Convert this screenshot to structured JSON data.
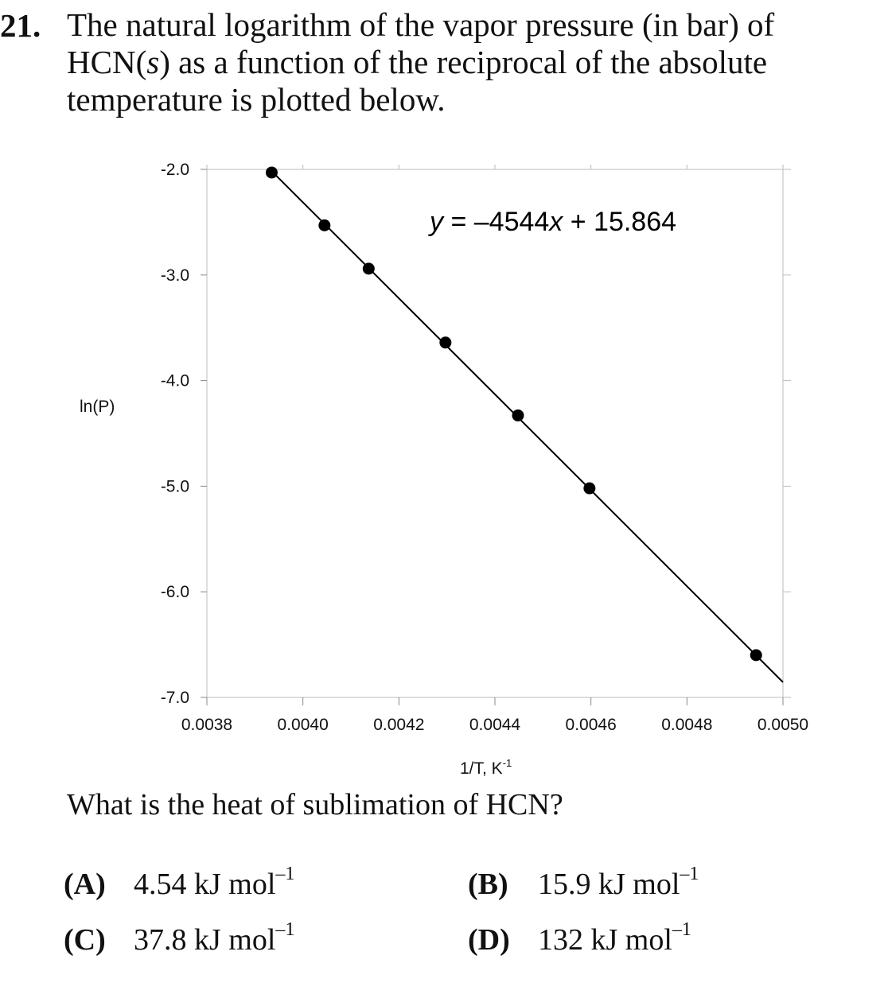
{
  "question": {
    "number": "21.",
    "line1": "The natural logarithm of the vapor pressure (in bar) of",
    "line2_pre": "HCN(",
    "line2_italic": "s",
    "line2_post": ") as a function of the reciprocal of the absolute",
    "line3": "temperature is plotted below.",
    "prompt": "What is the heat of sublimation of HCN?"
  },
  "choices": [
    {
      "label": "(A)",
      "value": "4.54 kJ mol",
      "exp": "–1"
    },
    {
      "label": "(B)",
      "value": "15.9 kJ mol",
      "exp": "–1"
    },
    {
      "label": "(C)",
      "value": "37.8 kJ mol",
      "exp": "–1"
    },
    {
      "label": "(D)",
      "value": "132 kJ mol",
      "exp": "–1"
    }
  ],
  "chart_data": {
    "type": "scatter",
    "xlabel": "1/T, K",
    "xlabel_exp": "-1",
    "ylabel": "ln(P)",
    "xlim": [
      0.0038,
      0.005
    ],
    "ylim": [
      -7.0,
      -2.0
    ],
    "xticks": [
      0.0038,
      0.004,
      0.0042,
      0.0044,
      0.0046,
      0.0048,
      0.005
    ],
    "xtick_labels": [
      "0.0038",
      "0.0040",
      "0.0042",
      "0.0044",
      "0.0046",
      "0.0048",
      "0.0050"
    ],
    "yticks": [
      -2.0,
      -3.0,
      -4.0,
      -5.0,
      -6.0,
      -7.0
    ],
    "ytick_labels": [
      "-2.0",
      "-3.0",
      "-4.0",
      "-5.0",
      "-6.0",
      "-7.0"
    ],
    "points": [
      {
        "x": 0.003935,
        "y": -2.03
      },
      {
        "x": 0.004045,
        "y": -2.53
      },
      {
        "x": 0.004137,
        "y": -2.94
      },
      {
        "x": 0.004297,
        "y": -3.64
      },
      {
        "x": 0.004448,
        "y": -4.33
      },
      {
        "x": 0.004597,
        "y": -5.02
      },
      {
        "x": 0.004944,
        "y": -6.6
      }
    ],
    "fit": {
      "slope": -4544,
      "intercept": 15.864,
      "x_range": [
        0.003935,
        0.005
      ]
    },
    "annotation": {
      "pre": "y",
      "mid": " = –4544",
      "var": "x",
      "post": " + 15.864"
    },
    "grid": false,
    "colors": {
      "marker": "#000000",
      "line": "#000000",
      "frame": "#bbbbbb"
    }
  }
}
